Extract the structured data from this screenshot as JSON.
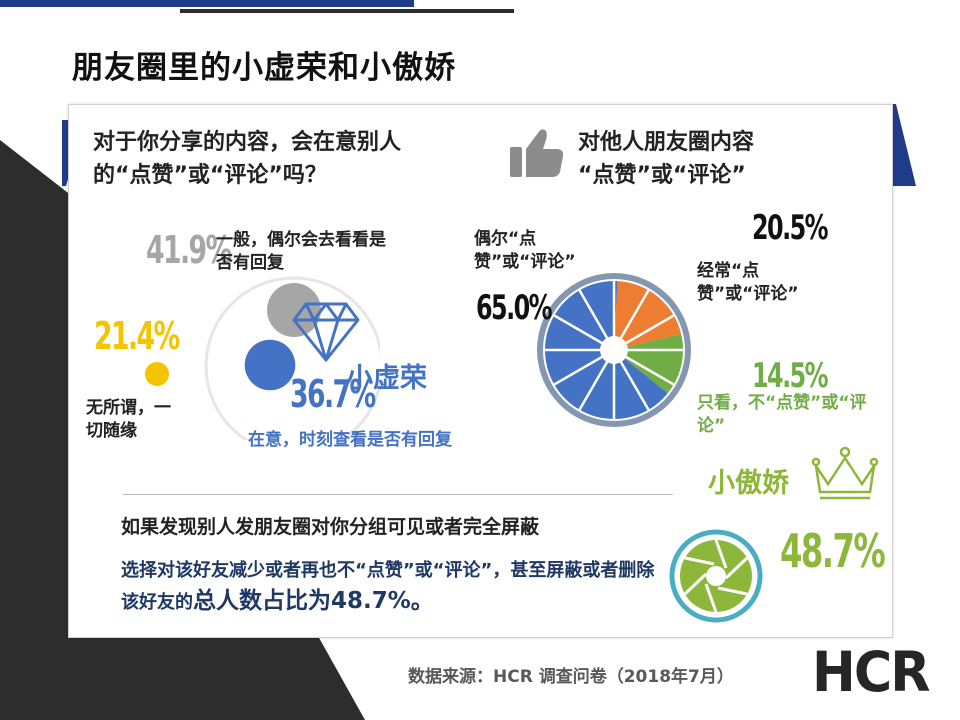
{
  "page": {
    "title": "朋友圈里的小虚荣和小傲娇",
    "source": "数据来源：HCR 调查问卷（2018年7月）",
    "logo": "HCR"
  },
  "left_panel": {
    "question": "对于你分享的内容，会在意别人的“点赞”或“评论”吗？",
    "tag": "小虚荣"
  },
  "right_panel": {
    "question_line1": "对他人朋友圈内容",
    "question_line2": "“点赞”或“评论”",
    "tag": "小傲娇",
    "tag_value": "48.7%"
  },
  "bottom": {
    "headline": "如果发现别人发朋友圈对你分组可见或者完全屏蔽",
    "body_prefix": "选择对该好友减少或者再也不“点赞”或“评论”，甚至屏蔽或者删除该好友的",
    "body_emphasis": "总人数占比为48.7%。"
  },
  "colors": {
    "blue": "#4472c4",
    "orange": "#ed7d31",
    "green": "#70ad47",
    "gray": "#a6a6a6",
    "gold": "#f5c400",
    "navy": "#1f3c8a",
    "dark": "#2d2d2d"
  },
  "chart_data": [
    {
      "type": "bubble",
      "categories": [
        {
          "label": "一般，偶尔会去看看是否有回复",
          "value": 41.9,
          "value_label": "41.9%",
          "color": "#a6a6a6"
        },
        {
          "label": "在意，时刻查看是否有回复",
          "value": 36.7,
          "value_label": "36.7%",
          "color": "#4472c4"
        },
        {
          "label": "无所谓，一切随缘",
          "value": 21.4,
          "value_label": "21.4%",
          "color": "#f5c400"
        }
      ]
    },
    {
      "type": "pie",
      "slices": [
        {
          "label": "偶尔“点赞”或“评论”",
          "value": 65.0,
          "value_label": "65.0%",
          "color": "#4472c4"
        },
        {
          "label": "经常“点赞”或“评论”",
          "value": 20.5,
          "value_label": "20.5%",
          "color": "#ed7d31"
        },
        {
          "label": "只看，不“点赞”或“评论”",
          "value": 14.5,
          "value_label": "14.5%",
          "color": "#70ad47"
        }
      ]
    }
  ]
}
